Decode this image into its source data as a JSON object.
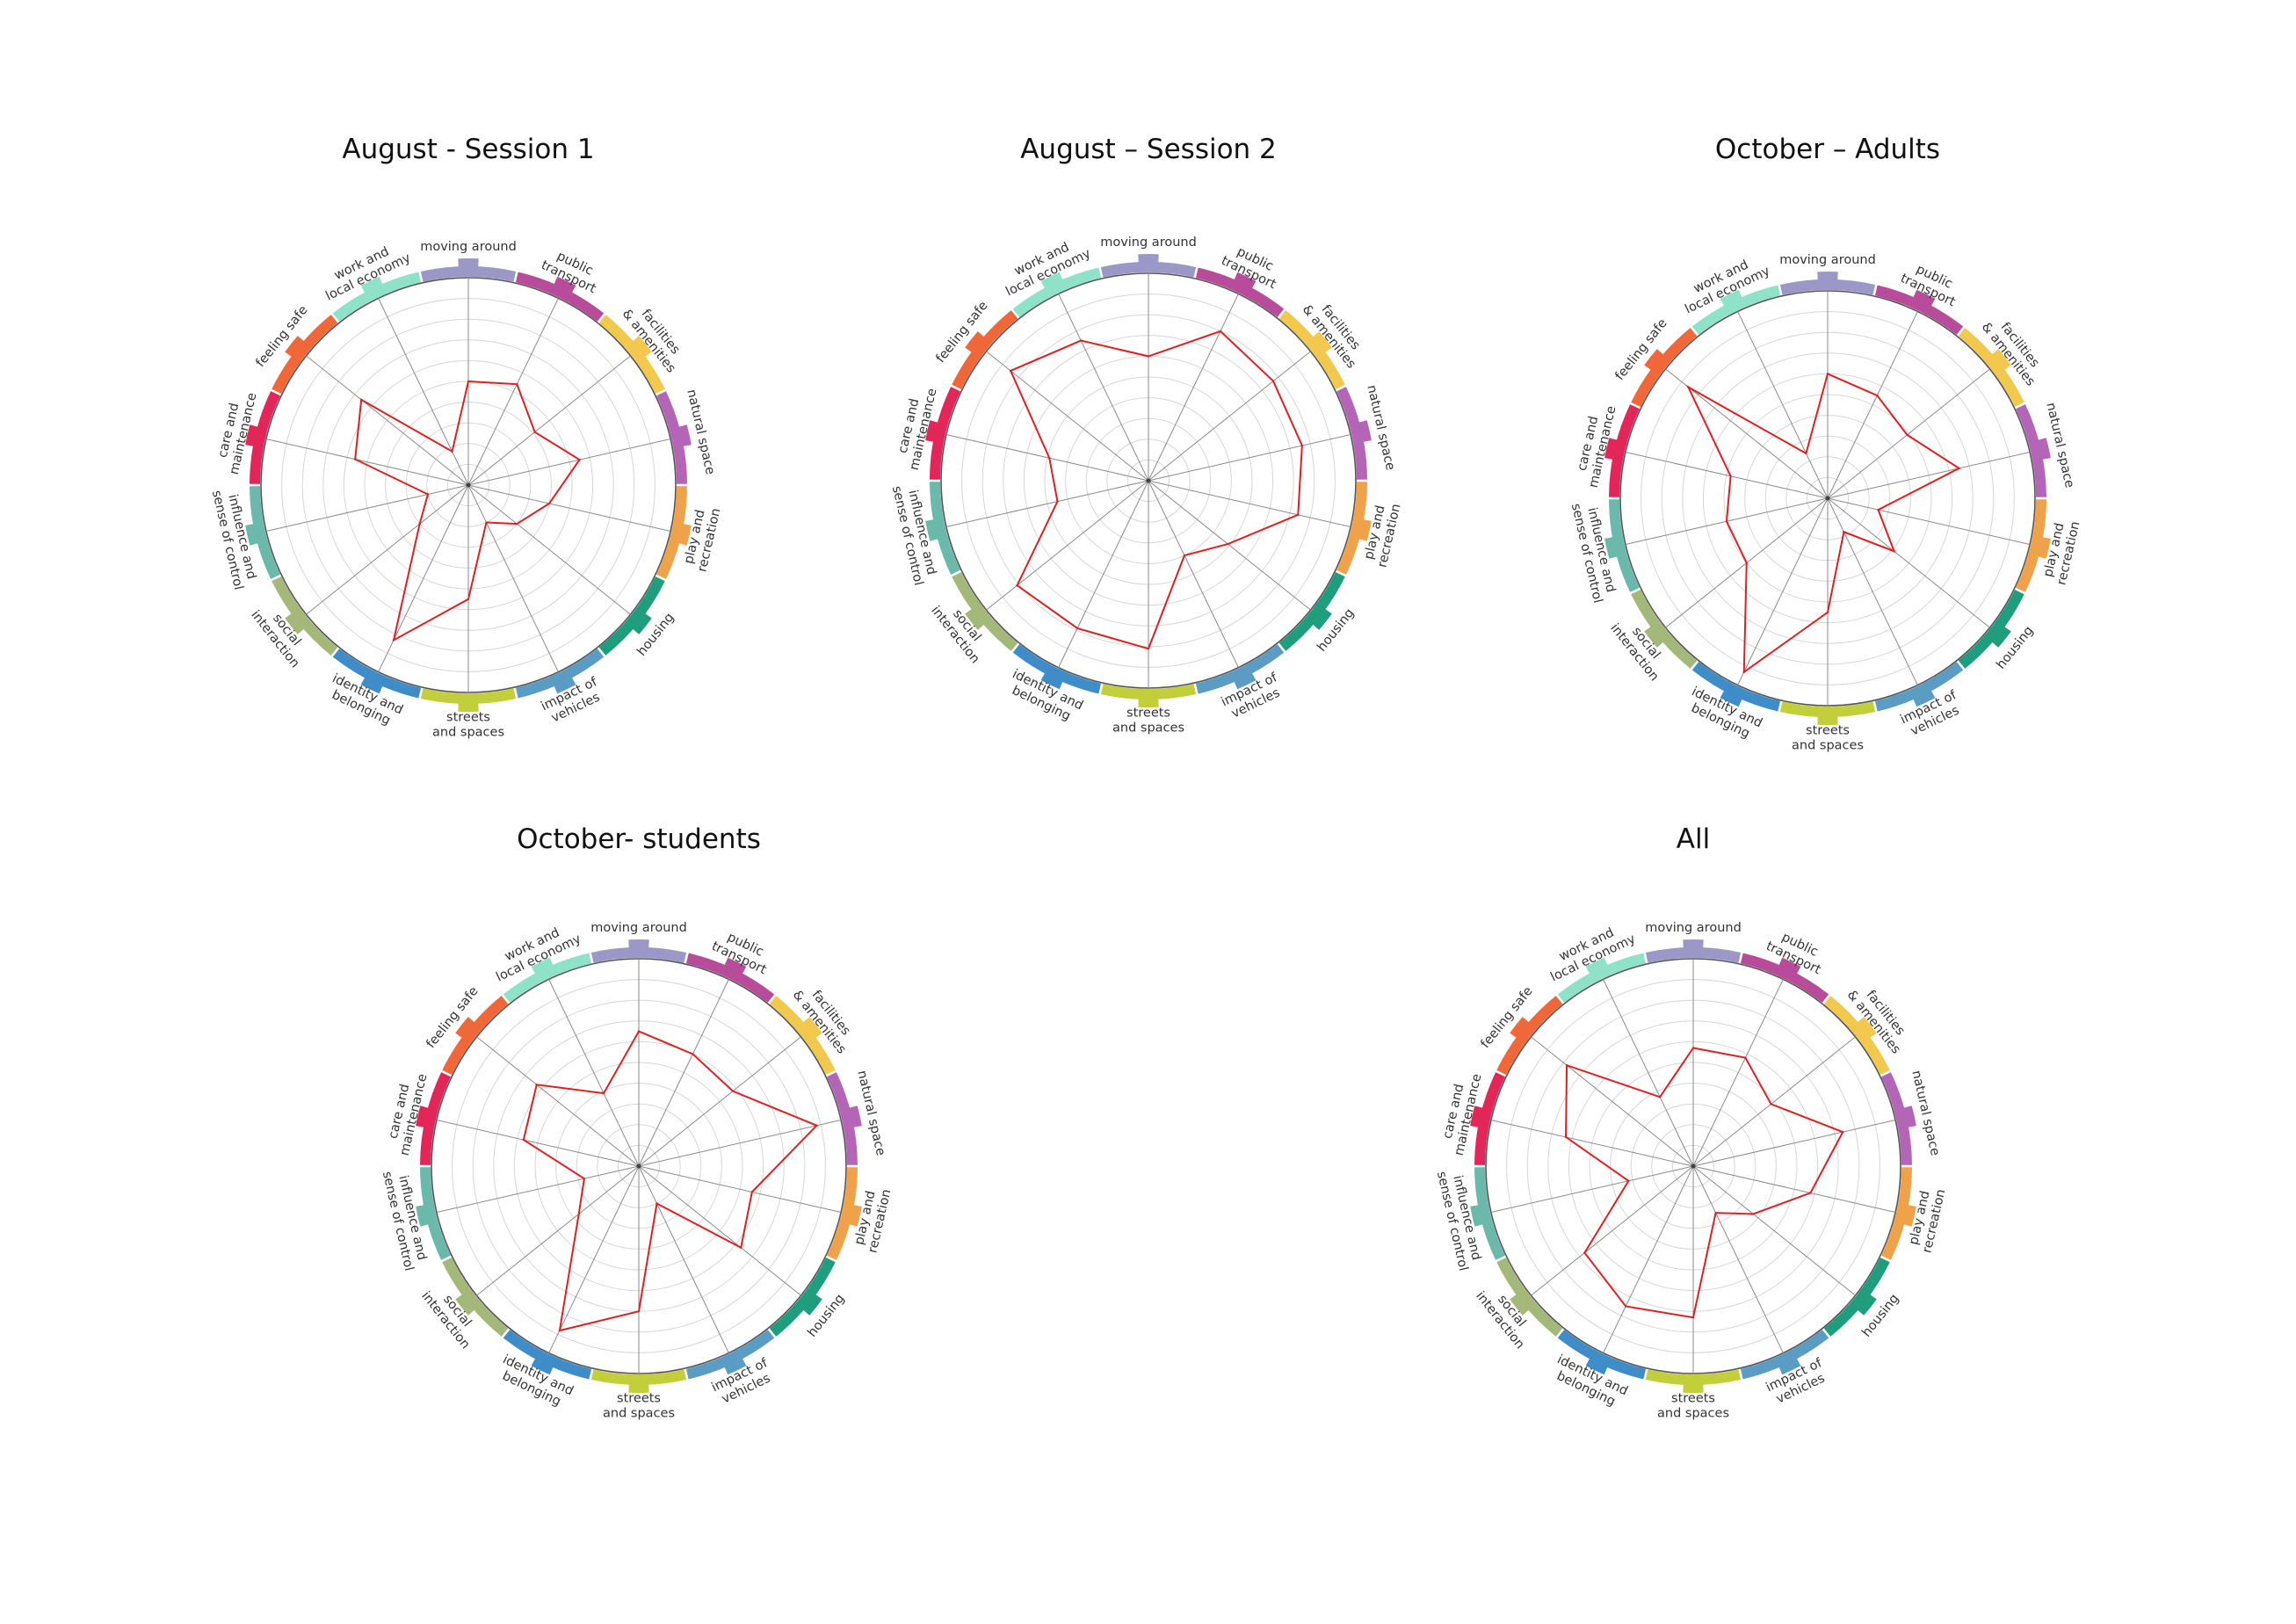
{
  "categories": [
    "moving around",
    "public transport",
    "facilities & amenities",
    "natural space",
    "play and recreation",
    "housing",
    "impact of vehicles",
    "streets and spaces",
    "identity and belonging",
    "social interaction",
    "influence and sense of control",
    "care and maintenance",
    "feeling safe",
    "work and local economy"
  ],
  "category_colors": [
    "#9b98c8",
    "#b84c9b",
    "#f2c94c",
    "#b565b8",
    "#f0a24a",
    "#1f9e7e",
    "#5a9cc4",
    "#c2cf3a",
    "#3e8dc8",
    "#a4b87a",
    "#6bb9ab",
    "#e2265a",
    "#f0683a",
    "#8ee2c8"
  ],
  "chart_data": [
    {
      "type": "radar",
      "title": "August - Session 1",
      "categories": [
        "moving around",
        "public transport",
        "facilities & amenities",
        "natural space",
        "play and recreation",
        "housing",
        "impact of vehicles",
        "streets and spaces",
        "identity and belonging",
        "social interaction",
        "influence and sense of control",
        "care and maintenance",
        "feeling safe",
        "work and local economy"
      ],
      "values": [
        5,
        5.4,
        4.1,
        5.5,
        4,
        3,
        2,
        5.5,
        8.3,
        3,
        2,
        5.6,
        6.6,
        1.8
      ],
      "scale_max": 10,
      "rings": 10
    },
    {
      "type": "radar",
      "title": "August – Session 2",
      "categories": [
        "moving around",
        "public transport",
        "facilities & amenities",
        "natural space",
        "play and recreation",
        "housing",
        "impact of vehicles",
        "streets and spaces",
        "identity and belonging",
        "social interaction",
        "influence and sense of control",
        "care and maintenance",
        "feeling safe",
        "work and local economy"
      ],
      "values": [
        6,
        8,
        7.7,
        7.6,
        7.4,
        4.9,
        4,
        8.1,
        7.9,
        8.1,
        4.5,
        4.9,
        8.5,
        7.5
      ],
      "scale_max": 10,
      "rings": 10
    },
    {
      "type": "radar",
      "title": "October – Adults",
      "categories": [
        "moving around",
        "public transport",
        "facilities & amenities",
        "natural space",
        "play and recreation",
        "housing",
        "impact of vehicles",
        "streets and spaces",
        "identity and belonging",
        "social interaction",
        "influence and sense of control",
        "care and maintenance",
        "feeling safe",
        "work and local economy"
      ],
      "values": [
        6,
        5.5,
        4.9,
        6.5,
        2.5,
        4.1,
        1.8,
        5.5,
        9.3,
        5,
        5,
        4.8,
        8.6,
        2.4
      ],
      "scale_max": 10,
      "rings": 10
    },
    {
      "type": "radar",
      "title": "October- students",
      "categories": [
        "moving around",
        "public transport",
        "facilities & amenities",
        "natural space",
        "play and recreation",
        "housing",
        "impact of vehicles",
        "streets and spaces",
        "identity and belonging",
        "social interaction",
        "influence and sense of control",
        "care and maintenance",
        "feeling safe",
        "work and local economy"
      ],
      "values": [
        6.5,
        6,
        5.8,
        8.8,
        5.6,
        6.3,
        2,
        7,
        8.8,
        3.7,
        2.7,
        5.7,
        6.3,
        3.9
      ],
      "scale_max": 10,
      "rings": 10
    },
    {
      "type": "radar",
      "title": "All",
      "categories": [
        "moving around",
        "public transport",
        "facilities & amenities",
        "natural space",
        "play and recreation",
        "housing",
        "impact of vehicles",
        "streets and spaces",
        "identity and belonging",
        "social interaction",
        "influence and sense of control",
        "care and maintenance",
        "feeling safe",
        "work and local economy"
      ],
      "values": [
        5.7,
        5.8,
        4.8,
        7.4,
        5.8,
        3.7,
        2.5,
        7.3,
        7.5,
        6.7,
        3.2,
        6.3,
        7.8,
        3.7
      ],
      "scale_max": 10,
      "rings": 10
    }
  ]
}
